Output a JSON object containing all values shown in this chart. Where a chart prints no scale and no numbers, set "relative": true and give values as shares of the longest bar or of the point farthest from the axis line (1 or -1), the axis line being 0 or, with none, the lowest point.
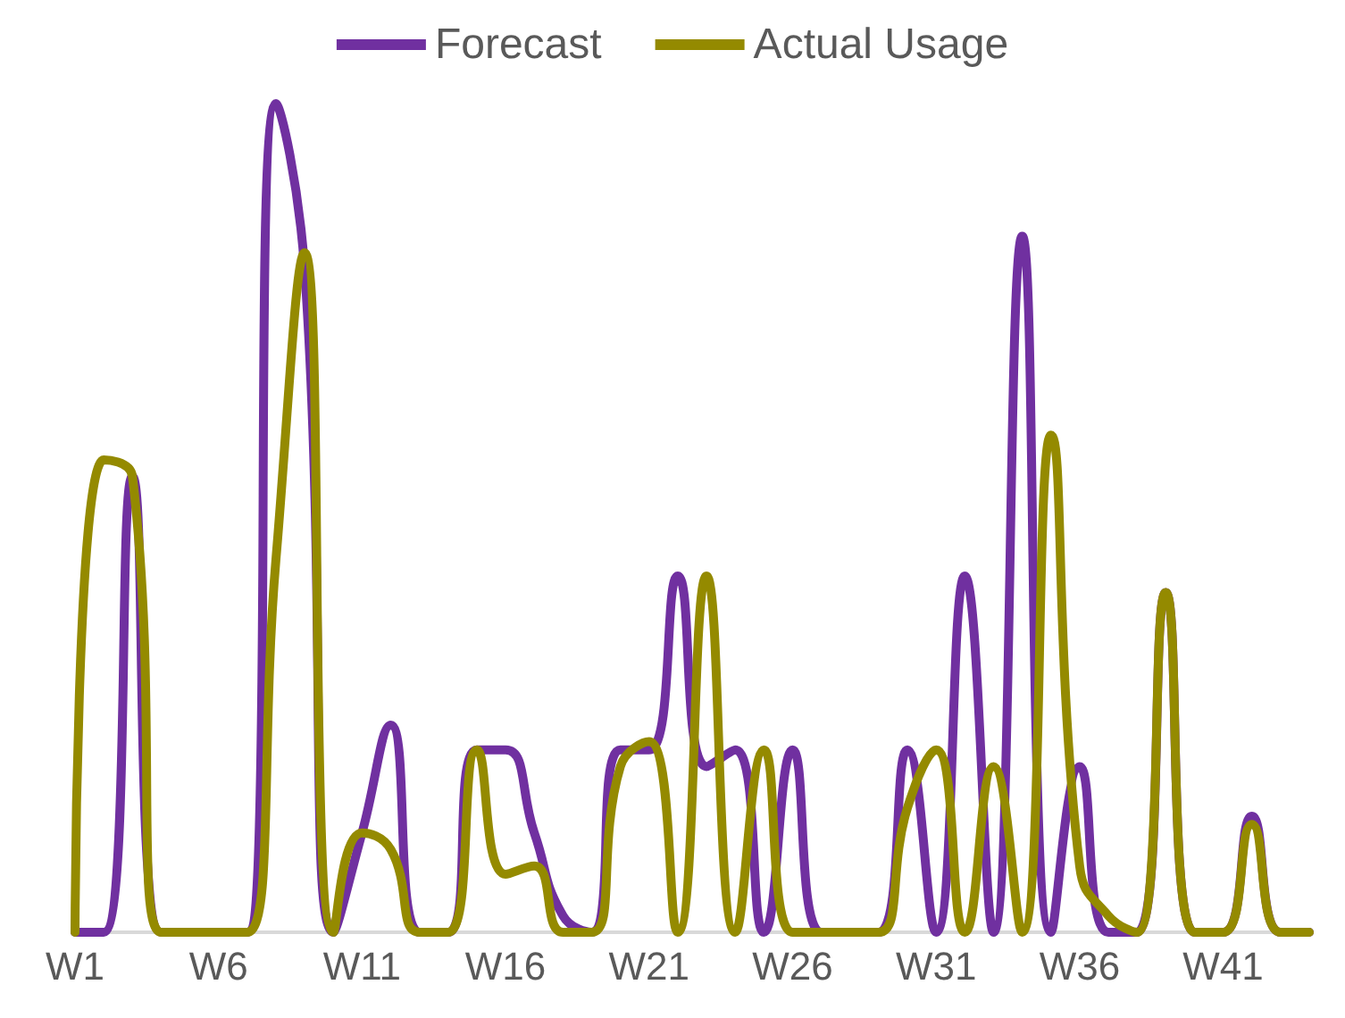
{
  "chart_data": {
    "type": "line",
    "relative": true,
    "legend": "top",
    "grid": false,
    "marker": "none",
    "line_style": "solid",
    "categories": [
      "W1",
      null,
      null,
      null,
      null,
      "W6",
      null,
      null,
      null,
      null,
      "W11",
      null,
      null,
      null,
      null,
      "W16",
      null,
      null,
      null,
      null,
      "W21",
      null,
      null,
      null,
      null,
      "W26",
      null,
      null,
      null,
      null,
      "W31",
      null,
      null,
      null,
      null,
      "W36",
      null,
      null,
      null,
      null,
      "W41",
      null,
      null,
      null
    ],
    "series": [
      {
        "name": "Forecast",
        "color": "#7030a0",
        "values": [
          0,
          0,
          0.55,
          0,
          0,
          0,
          0,
          1,
          0.8,
          0,
          0.12,
          0.25,
          0,
          0,
          0.22,
          0.22,
          0.12,
          0.02,
          0,
          0.22,
          0.22,
          0.43,
          0.2,
          0.22,
          0,
          0.22,
          0,
          0,
          0,
          0.22,
          0,
          0.43,
          0,
          0.84,
          0,
          0.2,
          0,
          0,
          0.41,
          0,
          0,
          0.14,
          0,
          0
        ]
      },
      {
        "name": "Actual Usage",
        "color": "#948a00",
        "values": [
          0,
          0.57,
          0.55,
          0,
          0,
          0,
          0,
          0.45,
          0.82,
          0,
          0.12,
          0.1,
          0,
          0,
          0.22,
          0.07,
          0.08,
          0,
          0,
          0.2,
          0.23,
          0,
          0.43,
          0,
          0.22,
          0,
          0,
          0,
          0,
          0.15,
          0.22,
          0,
          0.2,
          0,
          0.6,
          0.08,
          0.02,
          0,
          0.41,
          0,
          0,
          0.13,
          0,
          0
        ]
      }
    ]
  }
}
